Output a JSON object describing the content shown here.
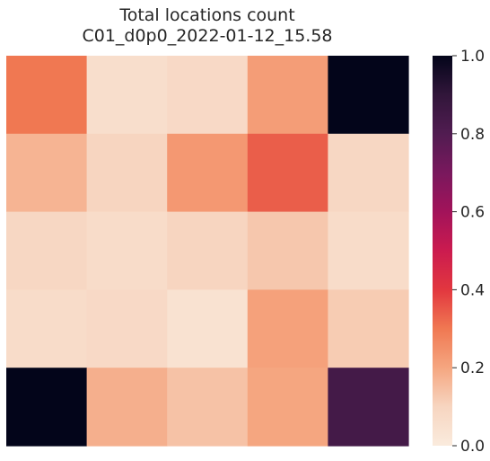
{
  "chart_data": {
    "type": "heatmap",
    "title": [
      "Total locations count",
      "C01_d0p0_2022-01-12_15.58"
    ],
    "rows": 5,
    "cols": 5,
    "values": [
      [
        0.3,
        0.06,
        0.08,
        0.22,
        1.0
      ],
      [
        0.17,
        0.1,
        0.23,
        0.34,
        0.09
      ],
      [
        0.09,
        0.07,
        0.1,
        0.13,
        0.07
      ],
      [
        0.07,
        0.08,
        0.04,
        0.21,
        0.12
      ],
      [
        1.0,
        0.18,
        0.14,
        0.2,
        0.84
      ]
    ],
    "vmin": 0.0,
    "vmax": 1.0,
    "colormap": "rocket_r",
    "colorbar": {
      "ticks": [
        0.0,
        0.2,
        0.4,
        0.6,
        0.8,
        1.0
      ],
      "tick_labels": [
        "0.0",
        "0.2",
        "0.4",
        "0.6",
        "0.8",
        "1.0"
      ]
    },
    "xticks": [],
    "yticks": [],
    "grid": false
  }
}
